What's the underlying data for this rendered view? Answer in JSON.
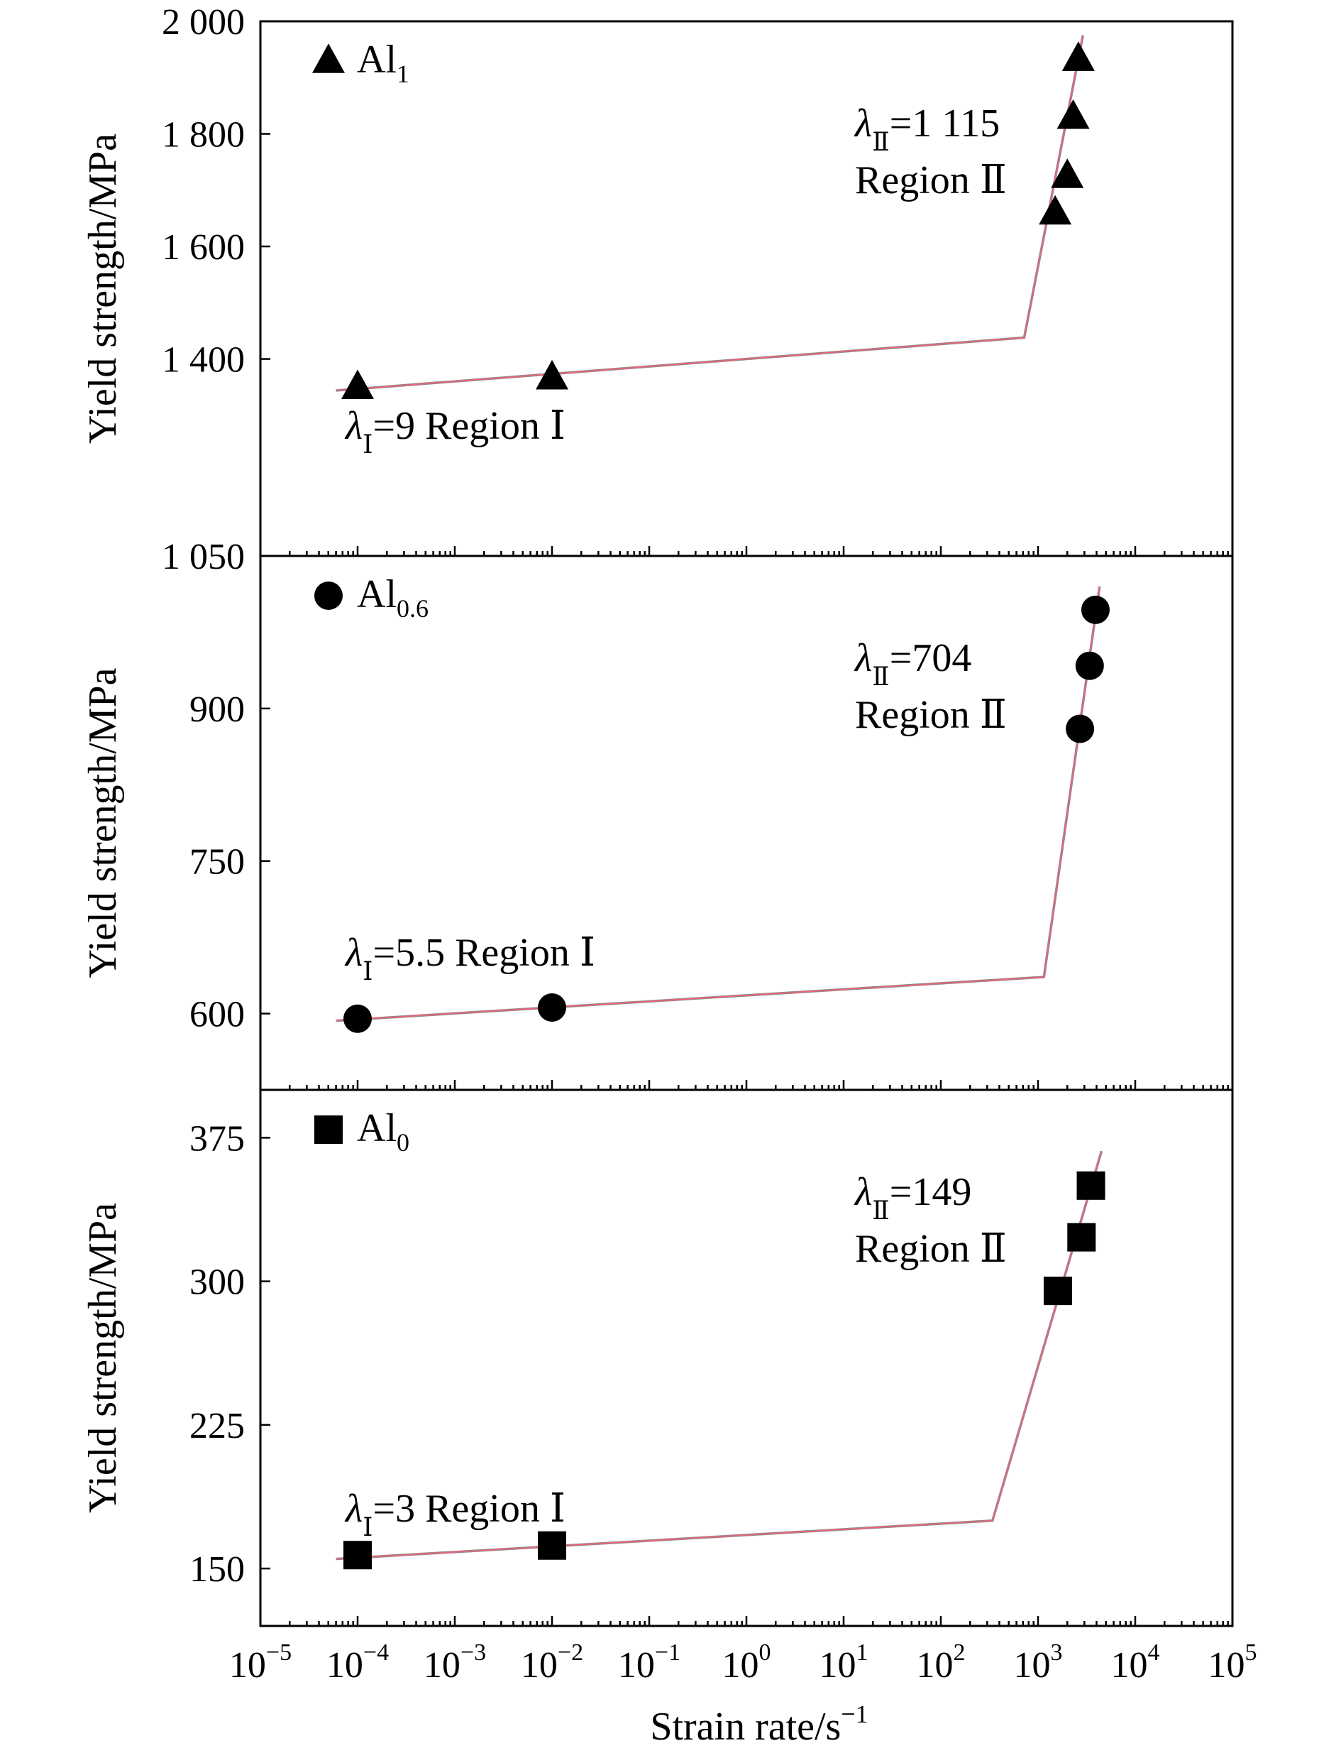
{
  "chart_data": {
    "type": "scatter",
    "xlabel": "Strain rate/s",
    "xlabel_sup": "−1",
    "x_scale": "log",
    "xlim": [
      1e-05,
      100000.0
    ],
    "x_tick_labels": [
      {
        "base": "10",
        "exp": "−5"
      },
      {
        "base": "10",
        "exp": "−4"
      },
      {
        "base": "10",
        "exp": "−3"
      },
      {
        "base": "10",
        "exp": "−2"
      },
      {
        "base": "10",
        "exp": "−1"
      },
      {
        "base": "10",
        "exp": "0"
      },
      {
        "base": "10",
        "exp": "1"
      },
      {
        "base": "10",
        "exp": "2"
      },
      {
        "base": "10",
        "exp": "3"
      },
      {
        "base": "10",
        "exp": "4"
      },
      {
        "base": "10",
        "exp": "5"
      }
    ],
    "grid": false,
    "legend_placement": "top-left",
    "panels": [
      {
        "series_name": "Al",
        "series_sub": "1",
        "marker": "triangle",
        "ylabel": "Yield strength/MPa",
        "ylim": [
          1050,
          2000
        ],
        "y_ticks": [
          {
            "value": 1050,
            "label": "1 050"
          },
          {
            "value": 1400,
            "label": "1 400"
          },
          {
            "value": 1600,
            "label": "1 600"
          },
          {
            "value": 1800,
            "label": "1 800"
          },
          {
            "value": 2000,
            "label": "2 000"
          }
        ],
        "points": [
          {
            "x": 0.0001,
            "y": 1350
          },
          {
            "x": 0.01,
            "y": 1367
          },
          {
            "x": 1500,
            "y": 1660
          },
          {
            "x": 2000,
            "y": 1725
          },
          {
            "x": 2300,
            "y": 1830
          },
          {
            "x": 2600,
            "y": 1933
          }
        ],
        "fit_line": [
          {
            "x": 6e-05,
            "y": 1344
          },
          {
            "x": 720,
            "y": 1438
          },
          {
            "x": 2900,
            "y": 1975
          }
        ],
        "annotation_region1": {
          "symbol": "λ",
          "sub": "Ⅰ",
          "text": "=9 Region Ⅰ"
        },
        "annotation_region2": {
          "symbol": "λ",
          "sub": "Ⅱ",
          "text": "=1 115",
          "line2": "Region Ⅱ"
        }
      },
      {
        "series_name": "Al",
        "series_sub": "0.6",
        "marker": "circle",
        "ylabel": "Yield strength/MPa",
        "ylim": [
          525,
          1050
        ],
        "y_ticks": [
          {
            "value": 600,
            "label": "600"
          },
          {
            "value": 750,
            "label": "750"
          },
          {
            "value": 900,
            "label": "900"
          }
        ],
        "points": [
          {
            "x": 0.0001,
            "y": 595
          },
          {
            "x": 0.01,
            "y": 606
          },
          {
            "x": 2700,
            "y": 880
          },
          {
            "x": 3400,
            "y": 942
          },
          {
            "x": 3900,
            "y": 997
          }
        ],
        "fit_line": [
          {
            "x": 6e-05,
            "y": 593
          },
          {
            "x": 1150,
            "y": 636
          },
          {
            "x": 4300,
            "y": 1020
          }
        ],
        "annotation_region1": {
          "symbol": "λ",
          "sub": "Ⅰ",
          "text": "=5.5 Region Ⅰ"
        },
        "annotation_region2": {
          "symbol": "λ",
          "sub": "Ⅱ",
          "text": "=704",
          "line2": "Region Ⅱ"
        }
      },
      {
        "series_name": "Al",
        "series_sub": "0",
        "marker": "square",
        "ylabel": "Yield strength/MPa",
        "ylim": [
          120,
          400
        ],
        "y_ticks": [
          {
            "value": 150,
            "label": "150"
          },
          {
            "value": 225,
            "label": "225"
          },
          {
            "value": 300,
            "label": "300"
          },
          {
            "value": 375,
            "label": "375"
          }
        ],
        "points": [
          {
            "x": 0.0001,
            "y": 157
          },
          {
            "x": 0.01,
            "y": 162
          },
          {
            "x": 1600,
            "y": 295
          },
          {
            "x": 2800,
            "y": 323
          },
          {
            "x": 3500,
            "y": 350
          }
        ],
        "fit_line": [
          {
            "x": 6e-05,
            "y": 155
          },
          {
            "x": 340,
            "y": 175
          },
          {
            "x": 4500,
            "y": 368
          }
        ],
        "annotation_region1": {
          "symbol": "λ",
          "sub": "Ⅰ",
          "text": "=3 Region Ⅰ"
        },
        "annotation_region2": {
          "symbol": "λ",
          "sub": "Ⅱ",
          "text": "=149",
          "line2": "Region Ⅱ"
        }
      }
    ]
  }
}
